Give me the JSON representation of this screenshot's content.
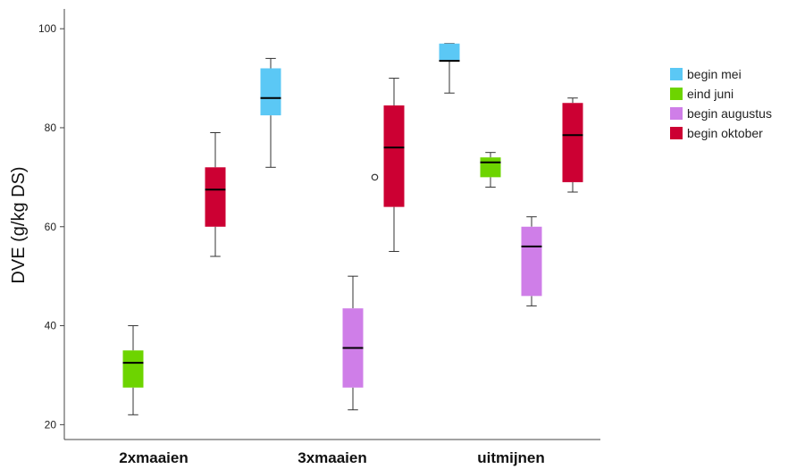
{
  "chart_data": {
    "type": "boxplot",
    "ylabel": "DVE (g/kg DS)",
    "xlabel": "",
    "ylim": [
      17,
      104
    ],
    "yticks": [
      20,
      40,
      60,
      80,
      100
    ],
    "categories": [
      "2xmaaien",
      "3xmaaien",
      "uitmijnen"
    ],
    "legend_position": "right",
    "grid": false,
    "series": [
      {
        "name": "begin mei",
        "color": "#5bc8f5",
        "boxes": [
          null,
          {
            "whisker_low": 72,
            "q1": 82.5,
            "median": 86,
            "q3": 92,
            "whisker_high": 94,
            "outliers": []
          },
          {
            "whisker_low": 87,
            "q1": 93.5,
            "median": 93.5,
            "q3": 97,
            "whisker_high": 97,
            "outliers": []
          }
        ]
      },
      {
        "name": "eind juni",
        "color": "#6dd400",
        "boxes": [
          {
            "whisker_low": 22,
            "q1": 27.5,
            "median": 32.5,
            "q3": 35,
            "whisker_high": 40,
            "outliers": []
          },
          null,
          {
            "whisker_low": 68,
            "q1": 70,
            "median": 73,
            "q3": 74,
            "whisker_high": 75,
            "outliers": []
          }
        ]
      },
      {
        "name": "begin augustus",
        "color": "#cf7ee8",
        "boxes": [
          null,
          {
            "whisker_low": 23,
            "q1": 27.5,
            "median": 35.5,
            "q3": 43.5,
            "whisker_high": 50,
            "outliers": []
          },
          {
            "whisker_low": 44,
            "q1": 46,
            "median": 56,
            "q3": 60,
            "whisker_high": 62,
            "outliers": []
          }
        ]
      },
      {
        "name": "begin oktober",
        "color": "#cc0033",
        "boxes": [
          {
            "whisker_low": 54,
            "q1": 60,
            "median": 67.5,
            "q3": 72,
            "whisker_high": 79,
            "outliers": []
          },
          {
            "whisker_low": 55,
            "q1": 64,
            "median": 76,
            "q3": 84.5,
            "whisker_high": 90,
            "outliers": [
              70
            ]
          },
          {
            "whisker_low": 67,
            "q1": 69,
            "median": 78.5,
            "q3": 85,
            "whisker_high": 86,
            "outliers": []
          }
        ]
      }
    ]
  }
}
